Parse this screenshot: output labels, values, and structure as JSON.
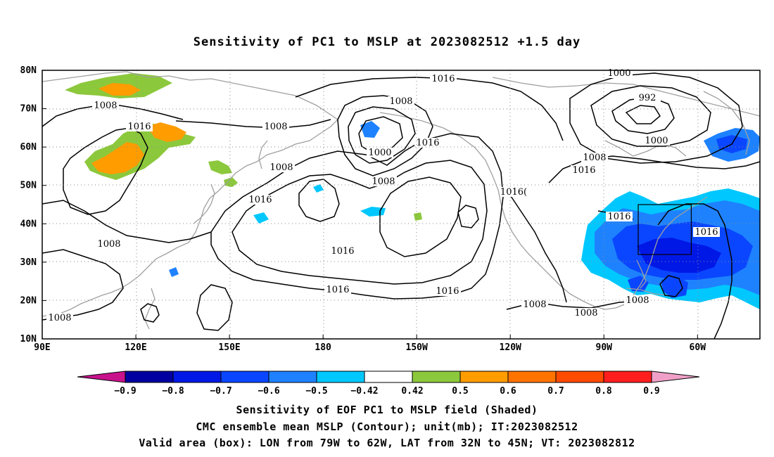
{
  "title": "Sensitivity of PC1 to MSLP at 2023082512 +1.5 day",
  "map": {
    "lat_labels": [
      "80N",
      "70N",
      "60N",
      "50N",
      "40N",
      "30N",
      "20N",
      "10N"
    ],
    "lon_labels": [
      "90E",
      "120E",
      "150E",
      "180",
      "150W",
      "120W",
      "90W",
      "60W"
    ],
    "contour_labels": [
      "1016",
      "1008",
      "1008",
      "1016",
      "1008",
      "1008",
      "1000",
      "1016",
      "1008",
      "1016",
      "1008",
      "1016",
      "1016",
      "1016",
      "1016",
      "1000",
      "992",
      "1000",
      "1008",
      "1016",
      "1016(",
      "1016",
      "1016",
      "1008",
      "1008",
      "1008",
      "1008"
    ],
    "valid_box": {
      "lon_min": -79,
      "lon_max": -62,
      "lat_min": 32,
      "lat_max": 45
    },
    "colors": {
      "neg_09": "#c8128c",
      "neg_08": "#0000a0",
      "neg_07": "#0018e6",
      "neg_06": "#0a46ff",
      "neg_05": "#1e82ff",
      "neg_042": "#00c8ff",
      "neutral": "#ffffff",
      "pos_042": "#8cc83c",
      "pos_05": "#ff9c00",
      "pos_06": "#ff7300",
      "pos_07": "#ff4b00",
      "pos_08": "#ff1e1e",
      "pos_09": "#f0a0c8",
      "coast": "#a0a0a0",
      "contour": "#000000"
    }
  },
  "colorbar": {
    "labels": [
      "−0.9",
      "−0.8",
      "−0.7",
      "−0.6",
      "−0.5",
      "−0.42",
      "0.42",
      "0.5",
      "0.6",
      "0.7",
      "0.8",
      "0.9"
    ]
  },
  "captions": [
    "Sensitivity of EOF PC1 to MSLP field (Shaded)",
    "CMC ensemble mean MSLP (Contour); unit(mb); IT:2023082512",
    "Valid area (box): LON from 79W to 62W, LAT from 32N to 45N; VT: 2023082812"
  ]
}
